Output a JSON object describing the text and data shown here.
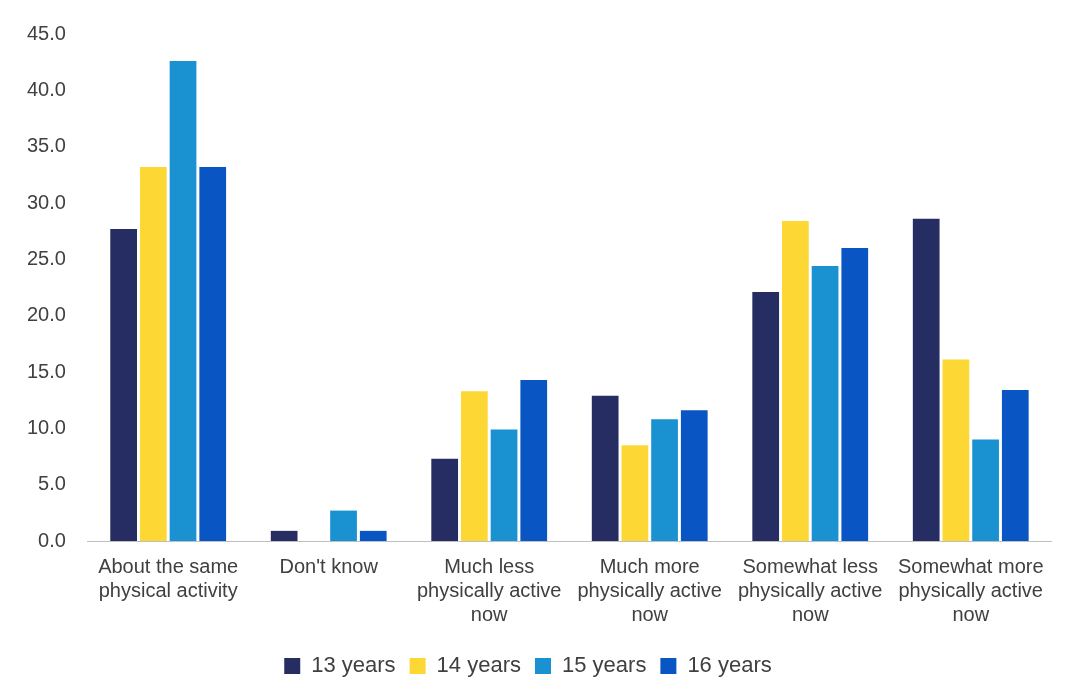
{
  "chart_data": {
    "type": "bar",
    "categories": [
      "About the same physical activity",
      "Don't know",
      "Much less physically active now",
      "Much more physically active now",
      "Somewhat less physically active now",
      "Somewhat more physically active now"
    ],
    "series": [
      {
        "name": "13 years",
        "color": "#262d63",
        "values": [
          27.7,
          0.9,
          7.3,
          12.9,
          22.1,
          28.6
        ]
      },
      {
        "name": "14 years",
        "color": "#fdd835",
        "values": [
          33.2,
          0,
          13.3,
          8.5,
          28.4,
          16.1
        ]
      },
      {
        "name": "15 years",
        "color": "#1a91d1",
        "values": [
          42.6,
          2.7,
          9.9,
          10.8,
          24.4,
          9.0
        ]
      },
      {
        "name": "16 years",
        "color": "#0a55c4",
        "values": [
          33.2,
          0.9,
          14.3,
          11.6,
          26.0,
          13.4
        ]
      }
    ],
    "ylim": [
      0,
      45
    ],
    "yticks": [
      {
        "value": 0,
        "label": "0.0"
      },
      {
        "value": 5,
        "label": "5.0"
      },
      {
        "value": 10,
        "label": "10.0"
      },
      {
        "value": 15,
        "label": "15.0"
      },
      {
        "value": 20,
        "label": "20.0"
      },
      {
        "value": 25,
        "label": "25.0"
      },
      {
        "value": 30,
        "label": "30.0"
      },
      {
        "value": 35,
        "label": "35.0"
      },
      {
        "value": 40,
        "label": "40.0"
      },
      {
        "value": 45,
        "label": "45.0"
      }
    ],
    "grid": false,
    "legend": "bottom"
  }
}
